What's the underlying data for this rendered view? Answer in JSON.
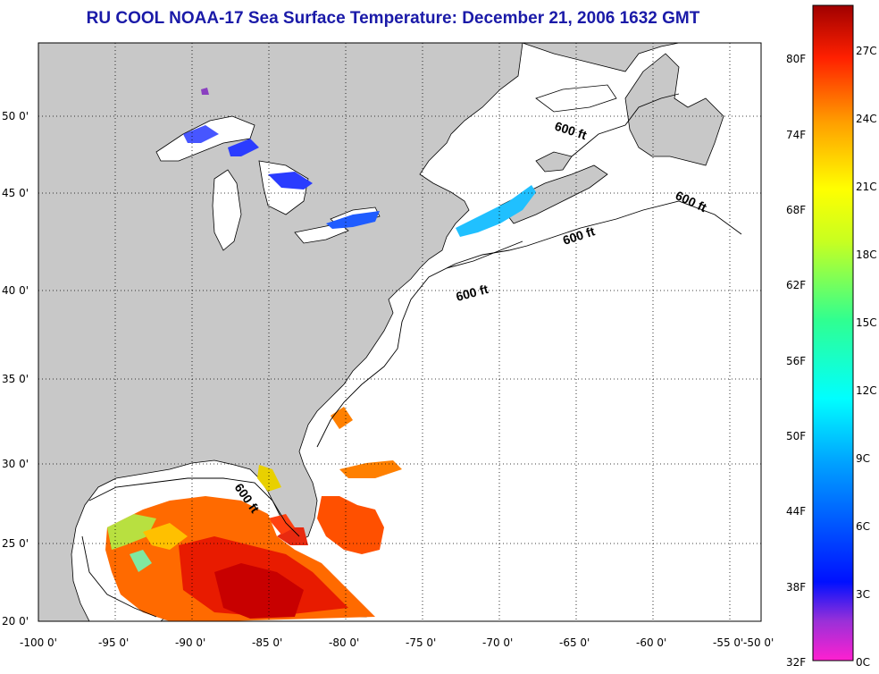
{
  "title": "RU COOL  NOAA-17  Sea Surface Temperature:  December 21, 2006 1632 GMT",
  "contour_label": "600 ft",
  "axes": {
    "x_ticks": [
      "-100 0'",
      "-95 0'",
      "-90 0'",
      "-85 0'",
      "-80 0'",
      "-75 0'",
      "-70 0'",
      "-65 0'",
      "-60 0'",
      "-55 0'",
      "-50 0'"
    ],
    "y_ticks": [
      "50 0'",
      "45 0'",
      "40 0'",
      "35 0'",
      "30 0'",
      "25 0'",
      "20 0'"
    ]
  },
  "colorbar": {
    "f_labels": [
      "80F",
      "74F",
      "68F",
      "62F",
      "56F",
      "50F",
      "44F",
      "38F",
      "32F"
    ],
    "c_labels": [
      "27C",
      "24C",
      "21C",
      "18C",
      "15C",
      "12C",
      "9C",
      "6C",
      "3C",
      "0C"
    ]
  },
  "colors": {
    "land": "#c8c8c8",
    "water": "#ffffff",
    "title": "#1a1aa8"
  }
}
